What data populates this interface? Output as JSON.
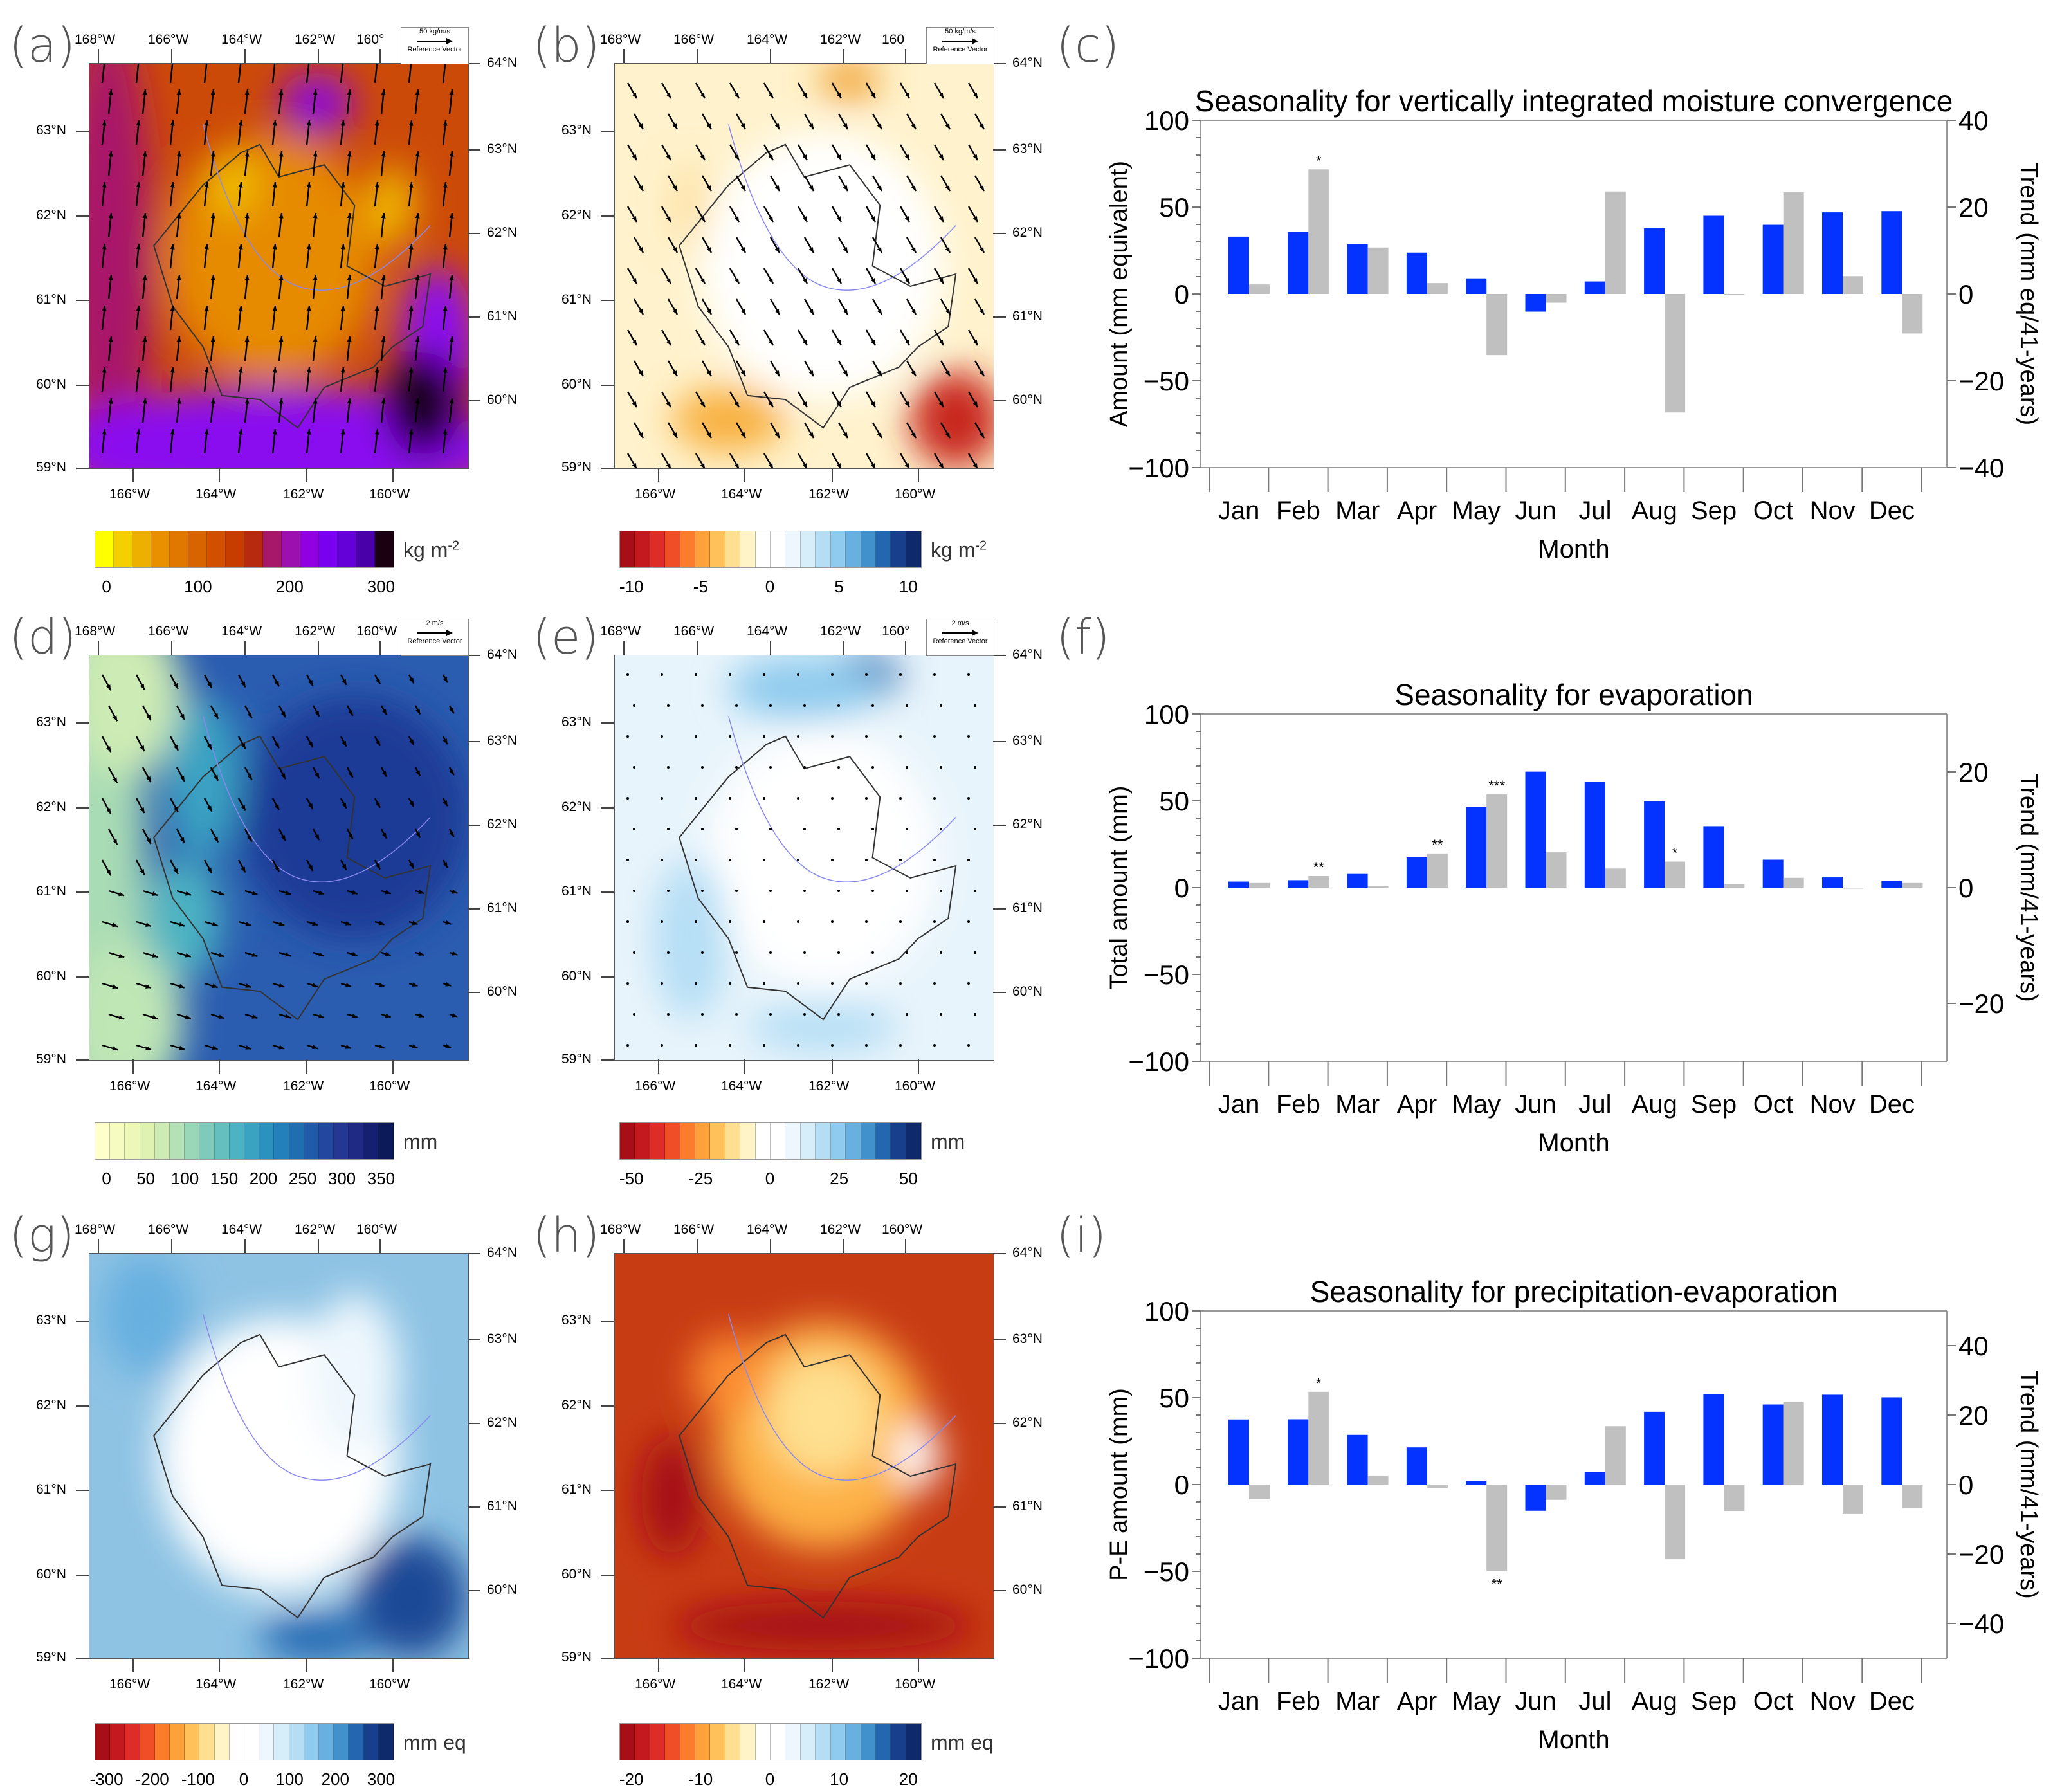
{
  "panel_labels": [
    "(a)",
    "(b)",
    "(c)",
    "(d)",
    "(e)",
    "(f)",
    "(g)",
    "(h)",
    "(i)"
  ],
  "maps": [
    {
      "id": "a",
      "lon_top": [
        "168°W",
        "166°W",
        "164°W",
        "162°W",
        "160°"
      ],
      "lon_bottom": [
        "166°W",
        "164°W",
        "162°W",
        "160°W"
      ],
      "lat_left": [
        "63°N",
        "62°N",
        "61°N",
        "60°N",
        "59°N"
      ],
      "lat_right": [
        "64°N",
        "63°N",
        "62°N",
        "61°N",
        "60°N"
      ],
      "ref_vector": {
        "magnitude": "50 kg/m/s",
        "label": "Reference Vector"
      },
      "colorbar": {
        "ticks": [
          "0",
          "100",
          "200",
          "300"
        ],
        "unit": "kg m",
        "unit_sup": "-2",
        "colors": [
          "#ffff00",
          "#f5d000",
          "#eeb000",
          "#e89000",
          "#e07800",
          "#d86400",
          "#d05000",
          "#c83c00",
          "#b82a10",
          "#a8186a",
          "#9c10b0",
          "#9000e0",
          "#7a00f0",
          "#6400d8",
          "#4a00a8",
          "#1a0010"
        ]
      }
    },
    {
      "id": "b",
      "lon_top": [
        "168°W",
        "166°W",
        "164°W",
        "162°W",
        "160"
      ],
      "lon_bottom": [
        "166°W",
        "164°W",
        "162°W",
        "160°W"
      ],
      "lat_left": [
        "63°N",
        "62°N",
        "61°N",
        "60°N",
        "59°N"
      ],
      "lat_right": [
        "64°N",
        "63°N",
        "62°N",
        "61°N",
        "60°N"
      ],
      "ref_vector": {
        "magnitude": "50 kg/m/s",
        "label": "Reference Vector"
      },
      "colorbar": {
        "ticks": [
          "-10",
          "-5",
          "0",
          "5",
          "10"
        ],
        "unit": "kg m",
        "unit_sup": "-2",
        "colors": [
          "#a50f15",
          "#c4191e",
          "#de2d26",
          "#f04e26",
          "#fb7c2a",
          "#fda13a",
          "#fec25a",
          "#fee090",
          "#fff4c8",
          "#ffffff",
          "#ffffff",
          "#eef7fd",
          "#d6eefa",
          "#b5def5",
          "#8fcbee",
          "#68b0e0",
          "#4191cc",
          "#2466b0",
          "#173f8c",
          "#0f2a6a"
        ]
      }
    },
    {
      "id": "d",
      "lon_top": [
        "168°W",
        "166°W",
        "164°W",
        "162°W",
        "160°W"
      ],
      "lon_bottom": [
        "166°W",
        "164°W",
        "162°W",
        "160°W"
      ],
      "lat_left": [
        "63°N",
        "62°N",
        "61°N",
        "60°N",
        "59°N"
      ],
      "lat_right": [
        "64°N",
        "63°N",
        "62°N",
        "61°N",
        "60°N"
      ],
      "ref_vector": {
        "magnitude": "2 m/s",
        "label": "Reference Vector"
      },
      "colorbar": {
        "ticks": [
          "0",
          "50",
          "100",
          "150",
          "200",
          "250",
          "300",
          "350"
        ],
        "unit": "mm",
        "unit_sup": "",
        "colors": [
          "#ffffcc",
          "#f6fbc2",
          "#edf8b8",
          "#dff2b2",
          "#cdebb4",
          "#b5e1b6",
          "#9ad6b8",
          "#7fcbbb",
          "#64c0bf",
          "#4cb3c2",
          "#3aa3c2",
          "#2b92c0",
          "#2380ba",
          "#206db2",
          "#215aa8",
          "#23479e",
          "#233793",
          "#1e2a84",
          "#152070",
          "#0d1a5a"
        ]
      }
    },
    {
      "id": "e",
      "lon_top": [
        "168°W",
        "166°W",
        "164°W",
        "162°W",
        "160°"
      ],
      "lon_bottom": [
        "166°W",
        "164°W",
        "162°W",
        "160°W"
      ],
      "lat_left": [
        "63°N",
        "62°N",
        "61°N",
        "60°N",
        "59°N"
      ],
      "lat_right": [
        "64°N",
        "63°N",
        "62°N",
        "61°N",
        "60°N"
      ],
      "ref_vector": {
        "magnitude": "2 m/s",
        "label": "Reference Vector"
      },
      "colorbar": {
        "ticks": [
          "-50",
          "-25",
          "0",
          "25",
          "50"
        ],
        "unit": "mm",
        "unit_sup": "",
        "colors": [
          "#a50f15",
          "#c4191e",
          "#de2d26",
          "#f04e26",
          "#fb7c2a",
          "#fda13a",
          "#fec25a",
          "#fee090",
          "#fff4c8",
          "#ffffff",
          "#ffffff",
          "#eef7fd",
          "#d6eefa",
          "#b5def5",
          "#8fcbee",
          "#68b0e0",
          "#4191cc",
          "#2466b0",
          "#173f8c",
          "#0f2a6a"
        ]
      }
    },
    {
      "id": "g",
      "lon_top": [
        "168°W",
        "166°W",
        "164°W",
        "162°W",
        "160°W"
      ],
      "lon_bottom": [
        "166°W",
        "164°W",
        "162°W",
        "160°W"
      ],
      "lat_left": [
        "63°N",
        "62°N",
        "61°N",
        "60°N",
        "59°N"
      ],
      "lat_right": [
        "64°N",
        "63°N",
        "62°N",
        "61°N",
        "60°N"
      ],
      "ref_vector": null,
      "colorbar": {
        "ticks": [
          "-300",
          "-200",
          "-100",
          "0",
          "100",
          "200",
          "300"
        ],
        "unit": "mm eq",
        "unit_sup": "",
        "colors": [
          "#a50f15",
          "#c4191e",
          "#de2d26",
          "#f04e26",
          "#fb7c2a",
          "#fda13a",
          "#fec25a",
          "#fee090",
          "#fff4c8",
          "#ffffff",
          "#ffffff",
          "#eef7fd",
          "#d6eefa",
          "#b5def5",
          "#8fcbee",
          "#68b0e0",
          "#4191cc",
          "#2466b0",
          "#173f8c",
          "#0f2a6a"
        ]
      }
    },
    {
      "id": "h",
      "lon_top": [
        "168°W",
        "166°W",
        "164°W",
        "162°W",
        "160°W"
      ],
      "lon_bottom": [
        "166°W",
        "164°W",
        "162°W",
        "160°W"
      ],
      "lat_left": [
        "63°N",
        "62°N",
        "61°N",
        "60°N",
        "59°N"
      ],
      "lat_right": [
        "64°N",
        "63°N",
        "62°N",
        "61°N",
        "60°N"
      ],
      "ref_vector": null,
      "colorbar": {
        "ticks": [
          "-20",
          "-10",
          "0",
          "10",
          "20"
        ],
        "unit": "mm eq",
        "unit_sup": "",
        "colors": [
          "#a50f15",
          "#c4191e",
          "#de2d26",
          "#f04e26",
          "#fb7c2a",
          "#fda13a",
          "#fec25a",
          "#fee090",
          "#fff4c8",
          "#ffffff",
          "#ffffff",
          "#eef7fd",
          "#d6eefa",
          "#b5def5",
          "#8fcbee",
          "#68b0e0",
          "#4191cc",
          "#2466b0",
          "#173f8c",
          "#0f2a6a"
        ]
      }
    }
  ],
  "chart_data": [
    {
      "type": "bar",
      "title": "Seasonality for vertically integrated moisture convergence",
      "xlabel": "Month",
      "ylabel": "Amount (mm equivalent)",
      "ylabel_right": "Trend (mm eq/41-years)",
      "categories": [
        "Jan",
        "Feb",
        "Mar",
        "Apr",
        "May",
        "Jun",
        "Jul",
        "Aug",
        "Sep",
        "Oct",
        "Nov",
        "Dec"
      ],
      "ylim": [
        -100,
        100
      ],
      "yticks": [
        -100,
        -50,
        0,
        50,
        100
      ],
      "ylim_right": [
        -40,
        40
      ],
      "yticks_right": [
        -40,
        -20,
        0,
        20,
        40
      ],
      "series": [
        {
          "name": "Amount",
          "axis": "left",
          "color": "#0433ff",
          "values": [
            33,
            35.7,
            28.6,
            23.8,
            9,
            -10.2,
            7.2,
            37.8,
            45,
            39.8,
            47,
            47.7
          ]
        },
        {
          "name": "Trend",
          "axis": "right",
          "color": "#c0c0c0",
          "values": [
            2.2,
            28.7,
            10.7,
            2.5,
            -14.1,
            -2,
            23.6,
            -27.3,
            0,
            23.4,
            4.1,
            -9.1
          ],
          "significance": [
            "",
            "*",
            "",
            "",
            "",
            "",
            "",
            "",
            "",
            "",
            "",
            ""
          ]
        }
      ]
    },
    {
      "type": "bar",
      "title": "Seasonality for evaporation",
      "xlabel": "Month",
      "ylabel": "Total amount (mm)",
      "ylabel_right": "Trend (mm/41-years)",
      "categories": [
        "Jan",
        "Feb",
        "Mar",
        "Apr",
        "May",
        "Jun",
        "Jul",
        "Aug",
        "Sep",
        "Oct",
        "Nov",
        "Dec"
      ],
      "ylim": [
        -100,
        100
      ],
      "yticks": [
        -100,
        -50,
        0,
        50,
        100
      ],
      "ylim_right": [
        -30,
        30
      ],
      "yticks_right": [
        -20,
        0,
        20
      ],
      "series": [
        {
          "name": "Total amount",
          "axis": "left",
          "color": "#0433ff",
          "values": [
            3.5,
            4.3,
            7.9,
            17.4,
            46.4,
            66.8,
            61,
            50,
            35.4,
            16.1,
            5.9,
            3.8
          ]
        },
        {
          "name": "Trend",
          "axis": "right",
          "color": "#c0c0c0",
          "values": [
            0.8,
            2,
            0.3,
            5.9,
            16.1,
            6.1,
            3.3,
            4.5,
            0.6,
            1.7,
            0,
            0.8
          ],
          "significance": [
            "",
            "**",
            "",
            "**",
            "***",
            "",
            "",
            "*",
            "",
            "",
            "",
            ""
          ]
        }
      ]
    },
    {
      "type": "bar",
      "title": "Seasonality for precipitation-evaporation",
      "xlabel": "Month",
      "ylabel": "P-E amount (mm)",
      "ylabel_right": "Trend (mm/41-years)",
      "categories": [
        "Jan",
        "Feb",
        "Mar",
        "Apr",
        "May",
        "Jun",
        "Jul",
        "Aug",
        "Sep",
        "Oct",
        "Nov",
        "Dec"
      ],
      "ylim": [
        -100,
        100
      ],
      "yticks": [
        -100,
        -50,
        0,
        50,
        100
      ],
      "ylim_right": [
        -50,
        50
      ],
      "yticks_right": [
        -40,
        -20,
        0,
        20,
        40
      ],
      "series": [
        {
          "name": "P-E amount",
          "axis": "left",
          "color": "#0433ff",
          "values": [
            37.5,
            37.6,
            28.6,
            21.4,
            1.9,
            -15.1,
            7.3,
            41.9,
            52,
            46.1,
            51.7,
            50.2
          ]
        },
        {
          "name": "Trend",
          "axis": "right",
          "color": "#c0c0c0",
          "values": [
            -4.2,
            26.7,
            2.4,
            -1,
            -24.9,
            -4.4,
            16.8,
            -21.5,
            -7.6,
            23.7,
            -8.5,
            -6.8
          ],
          "significance": [
            "",
            "*",
            "",
            "",
            "**",
            "",
            "",
            "",
            "",
            "",
            "",
            ""
          ]
        }
      ]
    }
  ]
}
